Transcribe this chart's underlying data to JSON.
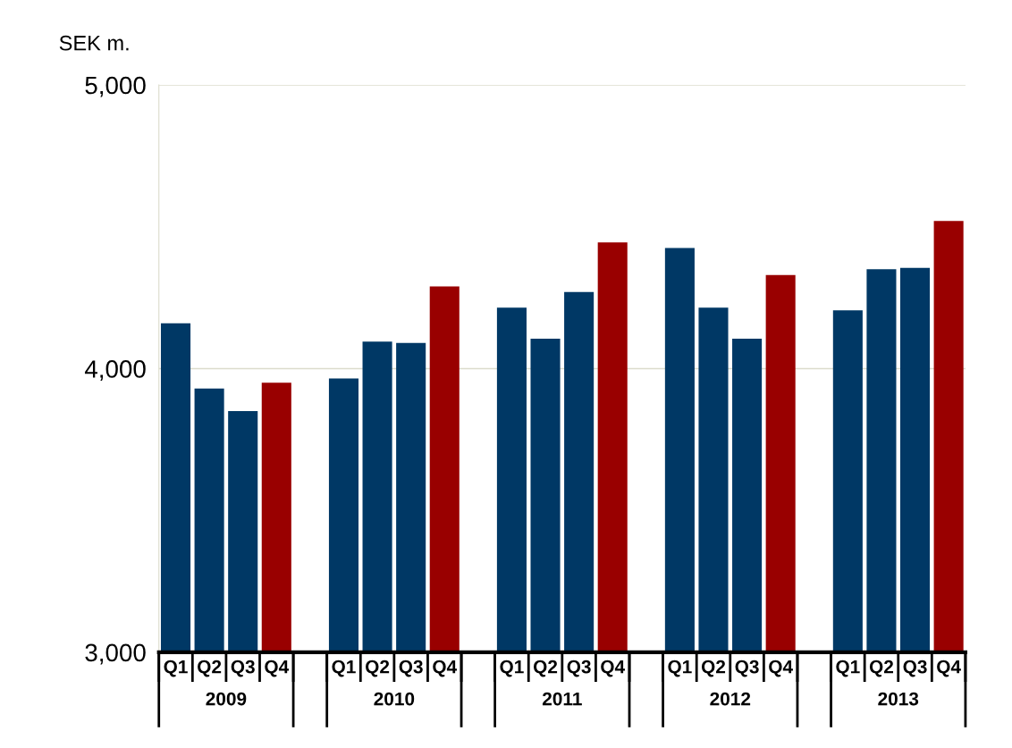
{
  "chart_data": {
    "type": "bar",
    "ylabel": "SEK m.",
    "categories": [
      "Q1",
      "Q2",
      "Q3",
      "Q4",
      null,
      "Q1",
      "Q2",
      "Q3",
      "Q4",
      null,
      "Q1",
      "Q2",
      "Q3",
      "Q4",
      null,
      "Q1",
      "Q2",
      "Q3",
      "Q4",
      null,
      "Q1",
      "Q2",
      "Q3",
      "Q4"
    ],
    "values": [
      4160,
      3930,
      3850,
      3950,
      null,
      3965,
      4095,
      4090,
      4290,
      null,
      4215,
      4105,
      4270,
      4445,
      null,
      4425,
      4215,
      4105,
      4330,
      null,
      4205,
      4350,
      4355,
      4520
    ],
    "colors": [
      "#003865",
      "#003865",
      "#003865",
      "#990000",
      null,
      "#003865",
      "#003865",
      "#003865",
      "#990000",
      null,
      "#003865",
      "#003865",
      "#003865",
      "#990000",
      null,
      "#003865",
      "#003865",
      "#003865",
      "#990000",
      null,
      "#003865",
      "#003865",
      "#003865",
      "#990000"
    ],
    "annotations": [
      "2009",
      "2010",
      "2011",
      "2012",
      "2013"
    ],
    "ylim": [
      3000,
      5000
    ],
    "yticks": [
      {
        "value": 3000,
        "label": "3,000"
      },
      {
        "value": 4000,
        "label": "4,000"
      },
      {
        "value": 5000,
        "label": "5,000"
      }
    ],
    "grid": "y"
  }
}
